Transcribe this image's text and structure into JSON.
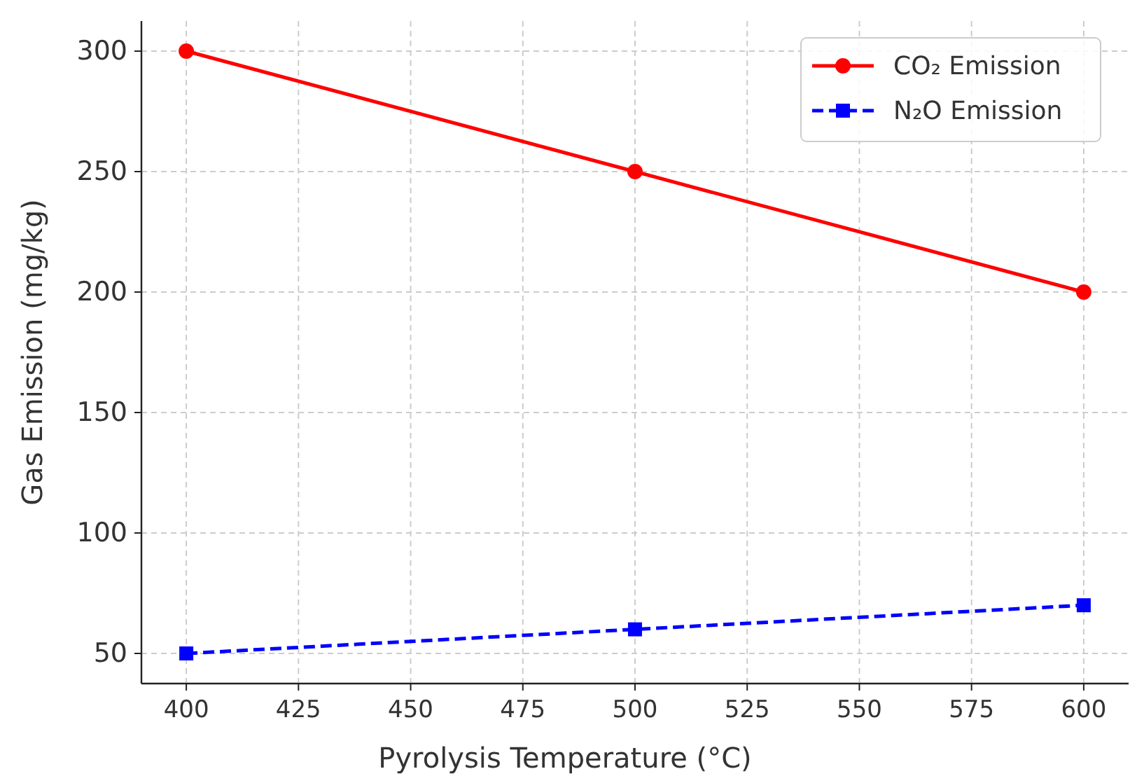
{
  "chart_data": {
    "type": "line",
    "xlabel": "Pyrolysis Temperature (°C)",
    "ylabel": "Gas Emission (mg/kg)",
    "x": [
      400,
      500,
      600
    ],
    "series": [
      {
        "name": "CO₂ Emission",
        "color": "#ff0000",
        "values": [
          300,
          250,
          200
        ],
        "marker": "circle",
        "line_style": "solid"
      },
      {
        "name": "N₂O Emission",
        "color": "#0000ff",
        "values": [
          50,
          60,
          70
        ],
        "marker": "square",
        "line_style": "dashed"
      }
    ],
    "xlim": [
      390,
      610
    ],
    "xticks": [
      400,
      425,
      450,
      475,
      500,
      525,
      550,
      575,
      600
    ],
    "ylim": [
      37.5,
      312.5
    ],
    "yticks": [
      50,
      100,
      150,
      200,
      250,
      300
    ],
    "grid": true,
    "legend": "top right"
  }
}
